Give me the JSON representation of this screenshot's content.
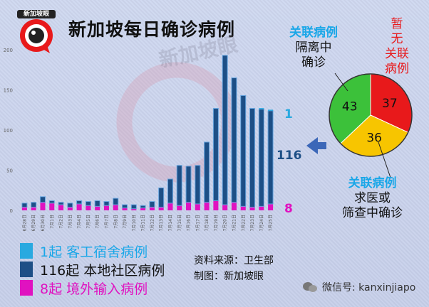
{
  "header": {
    "title": "新加坡每日确诊病例",
    "logo_text": "新加坡眼",
    "watermark": "新加坡眼"
  },
  "colors": {
    "dorm": "#29a9e0",
    "community": "#1d4f86",
    "imported": "#e012c0",
    "pie_red": "#e8191b",
    "pie_green": "#3cc13a",
    "pie_yellow": "#f7c500"
  },
  "chart_data": [
    {
      "type": "bar",
      "stacked": true,
      "categories": [
        "6月28日",
        "6月29日",
        "6月30日",
        "7月1日",
        "7月2日",
        "7月3日",
        "7月4日",
        "7月5日",
        "7月6日",
        "7月7日",
        "7月8日",
        "7月9日",
        "7月10日",
        "7月11日",
        "7月12日",
        "7月13日",
        "7月14日",
        "7月15日",
        "7月16日",
        "7月17日",
        "7月18日",
        "7月19日",
        "7月20日",
        "7月21日",
        "7月22日",
        "7月23日",
        "7月24日",
        "7月25日"
      ],
      "series": [
        {
          "name": "本地社区病例",
          "values": [
            5,
            6,
            7,
            3,
            3,
            5,
            4,
            5,
            7,
            5,
            8,
            4,
            5,
            3,
            7,
            24,
            30,
            50,
            45,
            48,
            75,
            115,
            186,
            155,
            138,
            123,
            121,
            116
          ]
        },
        {
          "name": "境外输入病例",
          "values": [
            4,
            4,
            10,
            9,
            7,
            4,
            8,
            6,
            5,
            6,
            7,
            3,
            2,
            3,
            4,
            4,
            9,
            6,
            10,
            8,
            10,
            12,
            7,
            10,
            5,
            4,
            5,
            8
          ]
        },
        {
          "name": "客工宿舍病例",
          "values": [
            0,
            0,
            0,
            0,
            0,
            0,
            0,
            0,
            0,
            0,
            0,
            0,
            0,
            0,
            0,
            0,
            0,
            0,
            0,
            0,
            0,
            0,
            0,
            0,
            0,
            0,
            1,
            1
          ]
        }
      ],
      "ylim": [
        0,
        200
      ],
      "yticks": [
        0,
        50,
        100,
        150,
        200
      ],
      "annotations": [
        "1",
        "116",
        "8"
      ]
    },
    {
      "type": "pie",
      "labels": [
        "暂无关联病例",
        "关联病例隔离中确诊",
        "关联病例求医或筛查中确诊"
      ],
      "values": [
        37,
        43,
        36
      ]
    }
  ],
  "pie_labels": {
    "unlinked": [
      "暂",
      "无",
      "关联",
      "病例"
    ],
    "linked_quarantine": [
      "关联病例",
      "隔离中",
      "确诊"
    ],
    "linked_screening": [
      "关联病例",
      "求医或",
      "筛查中确诊"
    ]
  },
  "legend": [
    {
      "label": "1起   客工宿舍病例",
      "color": "#29a9e0"
    },
    {
      "label": "116起 本地社区病例",
      "color": "#1d4f86"
    },
    {
      "label": "8起   境外输入病例",
      "color": "#e012c0"
    }
  ],
  "source": {
    "line1": "资料来源：卫生部",
    "line2": "制图：新加坡眼"
  },
  "footer": {
    "wechat": "微信号: kanxinjiapo"
  }
}
